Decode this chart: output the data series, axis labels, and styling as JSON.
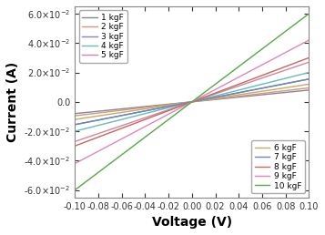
{
  "xlabel": "Voltage (V)",
  "ylabel": "Current (A)",
  "xlim": [
    -0.1,
    0.1
  ],
  "ylim": [
    -0.065,
    0.065
  ],
  "yticks": [
    -0.06,
    -0.04,
    -0.02,
    0.0,
    0.02,
    0.04,
    0.06
  ],
  "xticks": [
    -0.1,
    -0.08,
    -0.06,
    -0.04,
    -0.02,
    0.0,
    0.02,
    0.04,
    0.06,
    0.08,
    0.1
  ],
  "lines": [
    {
      "label": "1 kgF",
      "slope": 0.08,
      "color": "#888888"
    },
    {
      "label": "2 kgF",
      "slope": 0.095,
      "color": "#d4958a"
    },
    {
      "label": "3 kgF",
      "slope": 0.155,
      "color": "#8888bb"
    },
    {
      "label": "4 kgF",
      "slope": 0.2,
      "color": "#66bbbb"
    },
    {
      "label": "5 kgF",
      "slope": 0.27,
      "color": "#cc88aa"
    },
    {
      "label": "6 kgF",
      "slope": 0.12,
      "color": "#c8aa60"
    },
    {
      "label": "7 kgF",
      "slope": 0.155,
      "color": "#6688bb"
    },
    {
      "label": "8 kgF",
      "slope": 0.3,
      "color": "#cc6655"
    },
    {
      "label": "9 kgF",
      "slope": 0.42,
      "color": "#dd88bb"
    },
    {
      "label": "10 kgF",
      "slope": 0.6,
      "color": "#55aa44"
    }
  ],
  "legend1_indices": [
    0,
    1,
    2,
    3,
    4
  ],
  "legend2_indices": [
    5,
    6,
    7,
    8,
    9
  ],
  "bg_color": "#ffffff"
}
